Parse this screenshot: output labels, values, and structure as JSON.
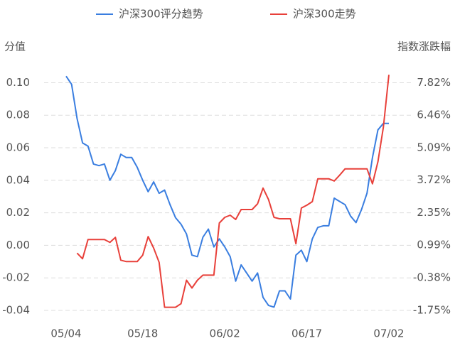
{
  "chart_data": {
    "type": "line",
    "legend_position": "top",
    "y_label": "分值",
    "y2_label": "指数涨跌幅",
    "grid": true,
    "categories": [
      "05/04",
      null,
      null,
      null,
      null,
      null,
      null,
      null,
      null,
      null,
      null,
      null,
      null,
      null,
      "05/18",
      null,
      null,
      null,
      null,
      null,
      null,
      null,
      null,
      null,
      null,
      null,
      null,
      null,
      null,
      "06/02",
      null,
      null,
      null,
      null,
      null,
      null,
      null,
      null,
      null,
      null,
      null,
      null,
      null,
      null,
      "06/17",
      null,
      null,
      null,
      null,
      null,
      null,
      null,
      null,
      null,
      null,
      null,
      null,
      null,
      null,
      "07/02"
    ],
    "ylim": [
      -0.04,
      0.105
    ],
    "yticks": [
      {
        "value": 0.1,
        "label": "0.10"
      },
      0.08,
      0.06,
      0.04,
      0.02,
      {
        "value": 0,
        "label": "0.00"
      },
      -0.02,
      -0.04
    ],
    "y2lim": [
      -1.75,
      8.16
    ],
    "y2ticks": [
      {
        "value": 7.82,
        "label": "7.82%"
      },
      {
        "value": 6.46,
        "label": "6.46%"
      },
      {
        "value": 5.09,
        "label": "5.09%"
      },
      {
        "value": 3.72,
        "label": "3.72%"
      },
      {
        "value": 2.35,
        "label": "2.35%"
      },
      {
        "value": 0.99,
        "label": "0.99%"
      },
      {
        "value": -0.38,
        "label": "-0.38%"
      },
      {
        "value": -1.75,
        "label": "-1.75%"
      }
    ],
    "series": [
      {
        "name": "沪深300评分趋势",
        "color": "#3a7ee0",
        "values": [
          0.104,
          0.099,
          0.078,
          0.063,
          0.061,
          0.05,
          0.049,
          0.05,
          0.04,
          0.046,
          0.056,
          0.054,
          0.054,
          0.048,
          0.04,
          0.033,
          0.039,
          0.032,
          0.034,
          0.025,
          0.017,
          0.013,
          0.007,
          -0.006,
          -0.007,
          0.005,
          0.01,
          -0.001,
          0.004,
          -0.001,
          -0.007,
          -0.022,
          -0.012,
          -0.017,
          -0.022,
          -0.017,
          -0.032,
          -0.037,
          -0.038,
          -0.028,
          -0.028,
          -0.033,
          -0.006,
          -0.003,
          -0.01,
          0.004,
          0.011,
          0.012,
          0.012,
          0.029,
          0.027,
          0.025,
          0.018,
          0.014,
          0.022,
          0.032,
          0.054,
          0.071,
          0.075,
          0.075
        ]
      },
      {
        "name": "沪深300走势",
        "color": "#e8403a",
        "axis": "y2",
        "values": [
          null,
          null,
          0.66,
          0.42,
          1.23,
          1.23,
          1.23,
          1.23,
          1.11,
          1.32,
          0.36,
          0.3,
          0.3,
          0.3,
          0.57,
          1.35,
          0.87,
          0.27,
          -1.62,
          -1.62,
          -1.62,
          -1.47,
          -0.48,
          -0.81,
          -0.48,
          -0.27,
          -0.27,
          -0.27,
          1.92,
          2.16,
          2.25,
          2.07,
          2.49,
          2.49,
          2.49,
          2.73,
          3.39,
          2.91,
          2.16,
          2.1,
          2.1,
          2.1,
          1.05,
          2.55,
          2.67,
          2.82,
          3.78,
          3.78,
          3.78,
          3.69,
          3.93,
          4.2,
          4.2,
          4.2,
          4.2,
          4.2,
          3.57,
          4.5,
          5.96,
          8.15
        ]
      }
    ]
  }
}
